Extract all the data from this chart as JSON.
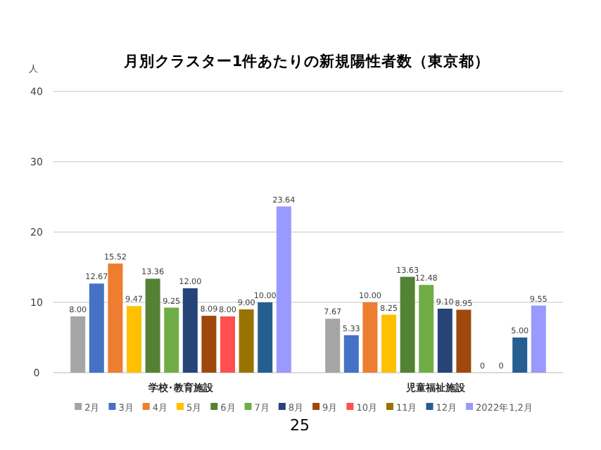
{
  "chart_data": {
    "type": "bar",
    "title": "月別クラスター1件あたりの新規陽性者数（東京都）",
    "ylabel": "人",
    "categories": [
      "学校･教育施設",
      "児童福祉施設"
    ],
    "series": [
      {
        "name": "2月",
        "color": "#a5a5a5",
        "values": [
          8.0,
          7.67
        ],
        "value_labels": [
          "8.00",
          "7.67"
        ]
      },
      {
        "name": "3月",
        "color": "#4472c4",
        "values": [
          12.67,
          5.33
        ],
        "value_labels": [
          "12.67",
          "5.33"
        ]
      },
      {
        "name": "4月",
        "color": "#ed7d31",
        "values": [
          15.52,
          10.0
        ],
        "value_labels": [
          "15.52",
          "10.00"
        ]
      },
      {
        "name": "5月",
        "color": "#ffc000",
        "values": [
          9.47,
          8.25
        ],
        "value_labels": [
          "9.47",
          "8.25"
        ]
      },
      {
        "name": "6月",
        "color": "#548235",
        "values": [
          13.36,
          13.63
        ],
        "value_labels": [
          "13.36",
          "13.63"
        ]
      },
      {
        "name": "7月",
        "color": "#70ad47",
        "values": [
          9.25,
          12.48
        ],
        "value_labels": [
          "9.25",
          "12.48"
        ]
      },
      {
        "name": "8月",
        "color": "#264478",
        "values": [
          12.0,
          9.1
        ],
        "value_labels": [
          "12.00",
          "9.10"
        ]
      },
      {
        "name": "9月",
        "color": "#9e480e",
        "values": [
          8.09,
          8.95
        ],
        "value_labels": [
          "8.09",
          "8.95"
        ]
      },
      {
        "name": "10月",
        "color": "#ff4f4f",
        "values": [
          8.0,
          0
        ],
        "value_labels": [
          "8.00",
          "0"
        ]
      },
      {
        "name": "11月",
        "color": "#997300",
        "values": [
          9.0,
          0
        ],
        "value_labels": [
          "9.00",
          "0"
        ]
      },
      {
        "name": "12月",
        "color": "#255e91",
        "values": [
          10.0,
          5.0
        ],
        "value_labels": [
          "10.00",
          "5.00"
        ]
      },
      {
        "name": "2022年1,2月",
        "color": "#9999ff",
        "values": [
          23.64,
          9.55
        ],
        "value_labels": [
          "23.64",
          "9.55"
        ]
      }
    ],
    "ylim": [
      0,
      40
    ],
    "yticks": [
      0,
      10,
      20,
      30,
      40
    ],
    "grid": "y",
    "legend": "bottom",
    "annotations": [
      "25"
    ]
  }
}
